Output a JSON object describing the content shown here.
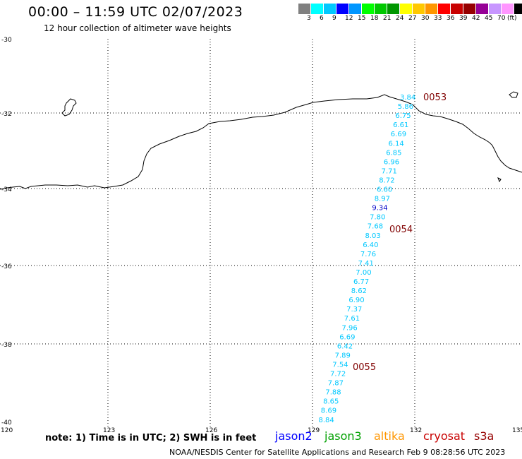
{
  "header": {
    "title": "00:00 – 11:59 UTC 02/07/2023",
    "subtitle": "12 hour collection of altimeter wave heights"
  },
  "legend": {
    "colors": [
      "#808080",
      "#00ffff",
      "#00c8ff",
      "#0000ff",
      "#0096ff",
      "#00ff00",
      "#00c800",
      "#009600",
      "#ffff00",
      "#ffc800",
      "#ff9600",
      "#ff0000",
      "#c80000",
      "#960000",
      "#960096",
      "#c896ff",
      "#ff96ff",
      "#000000"
    ],
    "labels": [
      "3",
      "6",
      "9",
      "12",
      "15",
      "18",
      "21",
      "24",
      "27",
      "30",
      "33",
      "36",
      "39",
      "42",
      "45",
      "70",
      "(ft)"
    ]
  },
  "axes": {
    "lat_labels": [
      "-30",
      "-32",
      "-34",
      "-36",
      "-38",
      "-40"
    ],
    "lon_labels": [
      "120",
      "123",
      "126",
      "129",
      "132",
      "135"
    ]
  },
  "wave_heights": [
    {
      "value": "3.84",
      "color": "#00c8ff"
    },
    {
      "value": "5.86",
      "color": "#00c8ff"
    },
    {
      "value": "6.75",
      "color": "#00c8ff"
    },
    {
      "value": "6.61",
      "color": "#00c8ff"
    },
    {
      "value": "6.69",
      "color": "#00c8ff"
    },
    {
      "value": "6.14",
      "color": "#00c8ff"
    },
    {
      "value": "6.85",
      "color": "#00c8ff"
    },
    {
      "value": "6.96",
      "color": "#00c8ff"
    },
    {
      "value": "7.71",
      "color": "#00c8ff"
    },
    {
      "value": "8.72",
      "color": "#00c8ff"
    },
    {
      "value": "6.60",
      "color": "#00c8ff"
    },
    {
      "value": "8.97",
      "color": "#00c8ff"
    },
    {
      "value": "9.34",
      "color": "#0000c8"
    },
    {
      "value": "7.80",
      "color": "#00c8ff"
    },
    {
      "value": "7.68",
      "color": "#00c8ff"
    },
    {
      "value": "8.03",
      "color": "#00c8ff"
    },
    {
      "value": "6.40",
      "color": "#00c8ff"
    },
    {
      "value": "7.76",
      "color": "#00c8ff"
    },
    {
      "value": "7.41",
      "color": "#00c8ff"
    },
    {
      "value": "7.00",
      "color": "#00c8ff"
    },
    {
      "value": "6.77",
      "color": "#00c8ff"
    },
    {
      "value": "8.62",
      "color": "#00c8ff"
    },
    {
      "value": "6.90",
      "color": "#00c8ff"
    },
    {
      "value": "7.37",
      "color": "#00c8ff"
    },
    {
      "value": "7.61",
      "color": "#00c8ff"
    },
    {
      "value": "7.96",
      "color": "#00c8ff"
    },
    {
      "value": "6.69",
      "color": "#00c8ff"
    },
    {
      "value": "6.42",
      "color": "#00c8ff"
    },
    {
      "value": "7.89",
      "color": "#00c8ff"
    },
    {
      "value": "7.54",
      "color": "#00c8ff"
    },
    {
      "value": "7.72",
      "color": "#00c8ff"
    },
    {
      "value": "7.87",
      "color": "#00c8ff"
    },
    {
      "value": "7.88",
      "color": "#00c8ff"
    },
    {
      "value": "8.65",
      "color": "#00c8ff"
    },
    {
      "value": "8.69",
      "color": "#00c8ff"
    },
    {
      "value": "8.84",
      "color": "#00c8ff"
    }
  ],
  "pass_times": [
    "0053",
    "0054",
    "0055"
  ],
  "note": "note: 1) Time is in UTC; 2) SWH is in feet",
  "satellites": [
    {
      "name": "jason2",
      "color": "#0000ff"
    },
    {
      "name": "jason3",
      "color": "#00a000"
    },
    {
      "name": "altika",
      "color": "#ff9600"
    },
    {
      "name": "cryosat",
      "color": "#c80000"
    },
    {
      "name": "s3a",
      "color": "#960000"
    }
  ],
  "footer": "NOAA/NESDIS Center for Satellite Applications and Research    Feb  9 08:28:56 UTC 2023"
}
